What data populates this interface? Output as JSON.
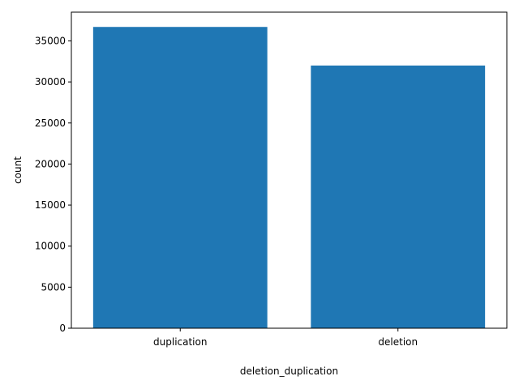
{
  "chart_data": {
    "type": "bar",
    "categories": [
      "duplication",
      "deletion"
    ],
    "values": [
      36700,
      32000
    ],
    "title": "",
    "xlabel": "deletion_duplication",
    "ylabel": "count",
    "ylim": [
      0,
      38500
    ],
    "yticks": [
      0,
      5000,
      10000,
      15000,
      20000,
      25000,
      30000,
      35000
    ],
    "grid": false,
    "legend": "none",
    "bar_color": "#1f77b4"
  }
}
